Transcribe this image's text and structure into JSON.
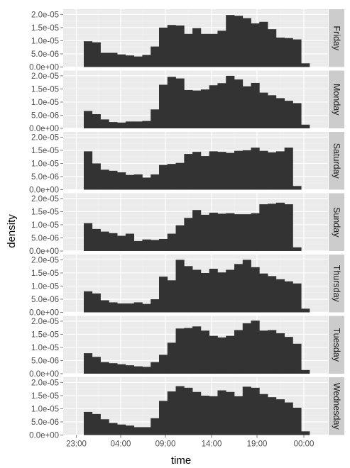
{
  "chart_data": {
    "type": "histogram-facets",
    "xlabel": "time",
    "ylabel": "density",
    "x_tick_labels": [
      "23:00",
      "04:00",
      "09:00",
      "14:00",
      "19:00",
      "00:00"
    ],
    "y_tick_labels": [
      "0.0e+00",
      "5.0e-06",
      "1.0e-05",
      "1.5e-05",
      "2.0e-05"
    ],
    "y_ticks": [
      0,
      5e-06,
      1e-05,
      1.5e-05,
      2e-05
    ],
    "ylim": [
      0,
      2.2e-05
    ],
    "bins_per_panel": 27,
    "bin_start_index": 1,
    "bar_color": "#333333",
    "panel_background": "#ebebeb",
    "strip_background": "#cccccc",
    "facets": [
      {
        "label": "Friday",
        "values": [
          9.8e-06,
          9.4e-06,
          5.4e-06,
          5.4e-06,
          4.8e-06,
          4.4e-06,
          4e-06,
          4.6e-06,
          7.8e-06,
          1.5e-05,
          1.6e-05,
          1.58e-05,
          1.26e-05,
          1.48e-05,
          1.26e-05,
          1.26e-05,
          1.38e-05,
          1.98e-05,
          1.95e-05,
          1.86e-05,
          1.66e-05,
          1.72e-05,
          1.44e-05,
          1.12e-05,
          1.1e-05,
          1.05e-05,
          1.4e-06
        ]
      },
      {
        "label": "Monday",
        "values": [
          6.6e-06,
          5.4e-06,
          3.4e-06,
          2.4e-06,
          2.2e-06,
          2.6e-06,
          2.6e-06,
          2.8e-06,
          7.2e-06,
          1.66e-05,
          1.96e-05,
          1.9e-05,
          1.46e-05,
          1.44e-05,
          1.48e-05,
          1.64e-05,
          1.72e-05,
          2e-05,
          1.86e-05,
          1.6e-05,
          1.73e-05,
          1.36e-05,
          1.26e-05,
          1.15e-05,
          1.05e-05,
          9.6e-06,
          1.4e-06
        ]
      },
      {
        "label": "Saturday",
        "values": [
          1.46e-05,
          1e-05,
          7.6e-06,
          7.2e-06,
          6.6e-06,
          5.6e-06,
          5.8e-06,
          4.6e-06,
          5.8e-06,
          9.4e-06,
          9.8e-06,
          1.02e-05,
          1.36e-05,
          1.44e-05,
          1.28e-05,
          1.46e-05,
          1.44e-05,
          1.4e-05,
          1.48e-05,
          1.5e-05,
          1.6e-05,
          1.48e-05,
          1.42e-05,
          1.46e-05,
          1.6e-05,
          1.4e-06,
          0
        ]
      },
      {
        "label": "Sunday",
        "values": [
          1.06e-05,
          8.4e-06,
          7.4e-06,
          6.8e-06,
          5.8e-06,
          6.6e-06,
          3.8e-06,
          4.4e-06,
          4.2e-06,
          4.6e-06,
          6.6e-06,
          9.8e-06,
          1.26e-05,
          1.56e-05,
          1.38e-05,
          1.46e-05,
          1.42e-05,
          1.44e-05,
          1.4e-05,
          1.4e-05,
          1.44e-05,
          1.78e-05,
          1.8e-05,
          1.84e-05,
          1.78e-05,
          1.4e-06,
          0
        ]
      },
      {
        "label": "Thursday",
        "values": [
          8e-06,
          7.2e-06,
          4.6e-06,
          3.8e-06,
          3.4e-06,
          3.4e-06,
          3.8e-06,
          3.2e-06,
          5e-06,
          1.36e-05,
          1.22e-05,
          2e-05,
          1.76e-05,
          1.62e-05,
          1.5e-05,
          1.66e-05,
          1.52e-05,
          1.62e-05,
          1.84e-05,
          2e-05,
          1.72e-05,
          1.48e-05,
          1.38e-05,
          1.26e-05,
          1.18e-05,
          1.1e-05,
          1.4e-06
        ]
      },
      {
        "label": "Tuesday",
        "values": [
          7.8e-06,
          6.4e-06,
          4.4e-06,
          4e-06,
          3.6e-06,
          3.2e-06,
          2.8e-06,
          2.6e-06,
          4.4e-06,
          7.2e-06,
          1.18e-05,
          1.72e-05,
          1.74e-05,
          1.8e-05,
          1.64e-05,
          1.44e-05,
          1.38e-05,
          1.44e-05,
          1.66e-05,
          1.92e-05,
          2.02e-05,
          1.64e-05,
          1.66e-05,
          1.54e-05,
          1.4e-05,
          1.14e-05,
          1.4e-06
        ]
      },
      {
        "label": "Wednesday",
        "values": [
          8.8e-06,
          8e-06,
          6e-06,
          4.6e-06,
          4e-06,
          3.6e-06,
          3e-06,
          3e-06,
          6.4e-06,
          1.3e-05,
          1.66e-05,
          1.86e-05,
          1.8e-05,
          1.64e-05,
          1.5e-05,
          1.48e-05,
          1.7e-05,
          1.64e-05,
          1.48e-05,
          1.84e-05,
          1.8e-05,
          1.56e-05,
          1.44e-05,
          1.36e-05,
          1.24e-05,
          1.04e-05,
          1.4e-06
        ]
      }
    ]
  }
}
